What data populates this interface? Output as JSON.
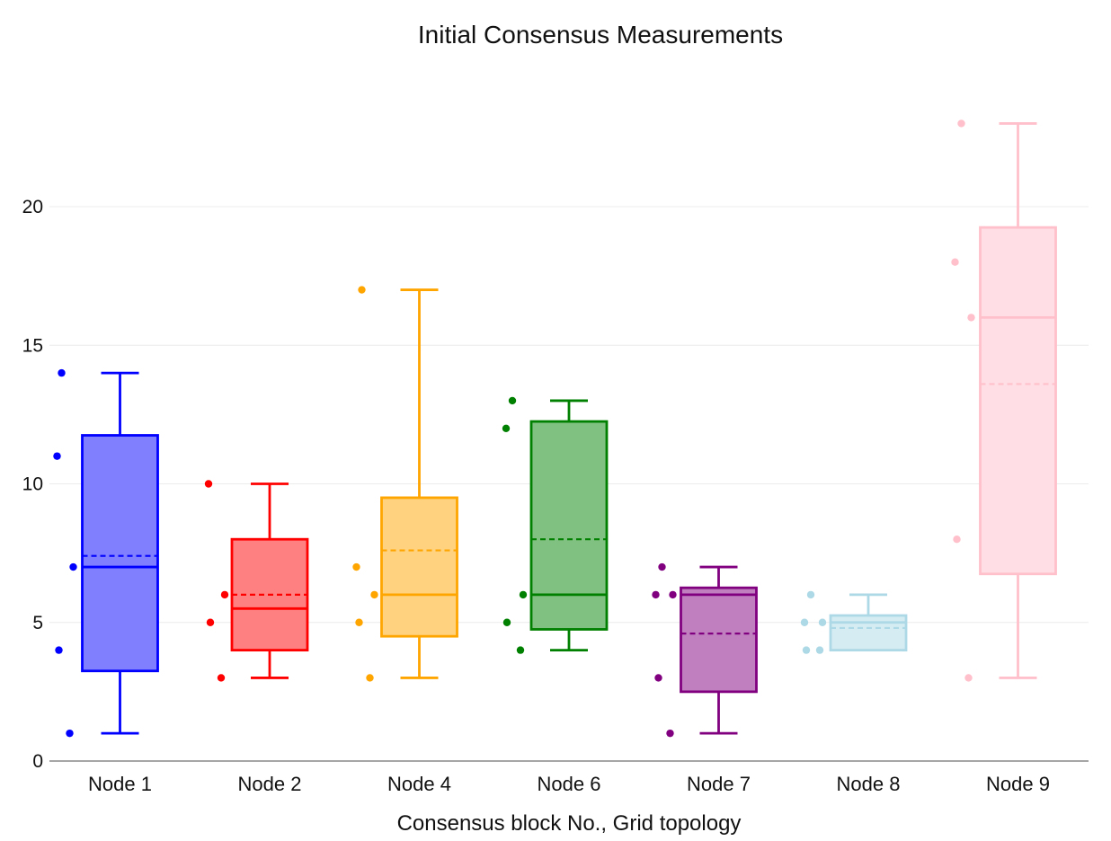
{
  "title": "Initial Consensus Measurements",
  "x_axis_title": "Consensus block No., Grid topology",
  "axis": {
    "text_color": "#111111",
    "grid_color": "#ececec",
    "axis_line_color": "#888888",
    "ytick_labels": [
      "0",
      "5",
      "10",
      "15",
      "20"
    ]
  },
  "chart_data": {
    "type": "box",
    "title": "Initial Consensus Measurements",
    "xlabel": "Consensus block No., Grid topology",
    "ylabel": "",
    "ylim": [
      0,
      24.4
    ],
    "yticks": [
      0,
      5,
      10,
      15,
      20
    ],
    "grid": true,
    "legend": false,
    "mean_line_style": "dashed",
    "points_display": "all points, jittered left of box",
    "categories": [
      "Node 1",
      "Node 2",
      "Node 4",
      "Node 6",
      "Node 7",
      "Node 8",
      "Node 9"
    ],
    "series": [
      {
        "label": "Node 1",
        "line_color": "#0000ff",
        "fill_color": "#8080ff",
        "stats": {
          "min": 1,
          "q1": 3.25,
          "median": 7,
          "mean": 7.4,
          "q3": 11.75,
          "max": 14
        },
        "points": [
          14,
          11,
          7,
          4,
          1
        ],
        "point_dx": [
          -65,
          -70,
          -52,
          -68,
          -56
        ]
      },
      {
        "label": "Node 2",
        "line_color": "#ff0000",
        "fill_color": "#ff8080",
        "stats": {
          "min": 3,
          "q1": 4,
          "median": 5.5,
          "mean": 6,
          "q3": 8,
          "max": 10
        },
        "points": [
          10,
          6,
          5,
          3
        ],
        "point_dx": [
          -68,
          -50,
          -66,
          -54
        ]
      },
      {
        "label": "Node 4",
        "line_color": "#ffa500",
        "fill_color": "#ffd280",
        "stats": {
          "min": 3,
          "q1": 4.5,
          "median": 6,
          "mean": 7.6,
          "q3": 9.5,
          "max": 17
        },
        "points": [
          17,
          7,
          6,
          5,
          3
        ],
        "point_dx": [
          -64,
          -70,
          -50,
          -67,
          -55
        ]
      },
      {
        "label": "Node 6",
        "line_color": "#008000",
        "fill_color": "#80c080",
        "stats": {
          "min": 4,
          "q1": 4.75,
          "median": 6,
          "mean": 8,
          "q3": 12.25,
          "max": 13
        },
        "points": [
          13,
          12,
          6,
          5,
          4
        ],
        "point_dx": [
          -63,
          -70,
          -51,
          -69,
          -54
        ]
      },
      {
        "label": "Node 7",
        "line_color": "#800080",
        "fill_color": "#c080c0",
        "stats": {
          "min": 1,
          "q1": 2.5,
          "median": 6,
          "mean": 4.6,
          "q3": 6.25,
          "max": 7
        },
        "points": [
          7,
          6,
          6,
          3,
          1
        ],
        "point_dx": [
          -63,
          -70,
          -51,
          -67,
          -54
        ]
      },
      {
        "label": "Node 8",
        "line_color": "#add8e6",
        "fill_color": "#d6ecf3",
        "stats": {
          "min": 4,
          "q1": 4,
          "median": 5,
          "mean": 4.8,
          "q3": 5.25,
          "max": 6
        },
        "points": [
          6,
          5,
          5,
          4,
          4
        ],
        "point_dx": [
          -64,
          -71,
          -51,
          -69,
          -54
        ]
      },
      {
        "label": "Node 9",
        "line_color": "#ffc0cb",
        "fill_color": "#ffdfe5",
        "stats": {
          "min": 3,
          "q1": 6.75,
          "median": 16,
          "mean": 13.6,
          "q3": 19.25,
          "max": 23
        },
        "points": [
          23,
          18,
          16,
          8,
          3
        ],
        "point_dx": [
          -63,
          -70,
          -52,
          -68,
          -55
        ]
      }
    ]
  }
}
